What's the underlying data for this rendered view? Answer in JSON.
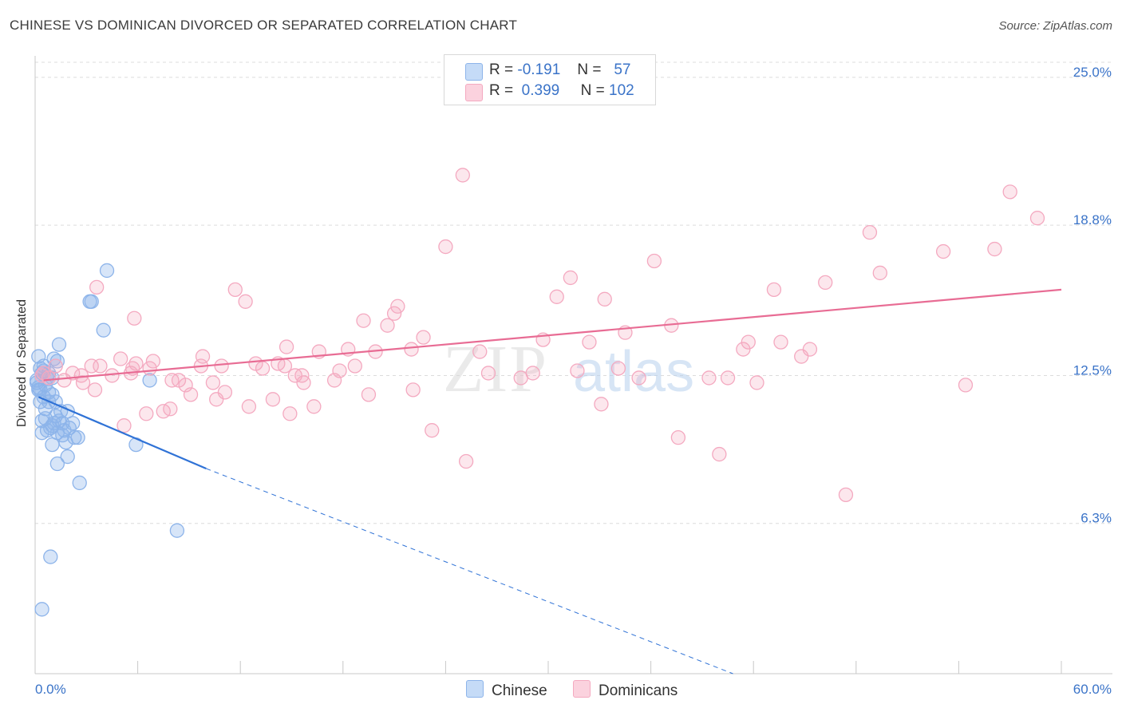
{
  "chart_data": {
    "type": "scatter",
    "title": "CHINESE VS DOMINICAN DIVORCED OR SEPARATED CORRELATION CHART",
    "source": "Source: ZipAtlas.com",
    "xlabel": "",
    "ylabel": "Divorced or Separated",
    "xlim": [
      0,
      60
    ],
    "ylim": [
      0,
      25.9
    ],
    "x_tick_labels": [
      "0.0%",
      "60.0%"
    ],
    "y_ticks": [
      6.3,
      12.5,
      18.8,
      25.0
    ],
    "y_tick_labels": [
      "6.3%",
      "12.5%",
      "18.8%",
      "25.0%"
    ],
    "grid": true,
    "watermark": "ZIPatlas",
    "legend_stats": [
      {
        "r_label": "R =",
        "r": "-0.191",
        "n_label": "N =",
        "n": "57",
        "color": "#8db4ea"
      },
      {
        "r_label": "R =",
        "r": "0.399",
        "n_label": "N =",
        "n": "102",
        "color": "#f4a9c0"
      }
    ],
    "series": [
      {
        "name": "Chinese",
        "color": "#8db4ea",
        "line_color": "#2f72d6",
        "trend": {
          "x0": 0.2,
          "y0": 11.6,
          "x1": 10.0,
          "y1": 8.6,
          "dash_to_x": 40.8,
          "dash_to_y": 0.0
        },
        "x": [
          0.1,
          0.2,
          0.2,
          0.3,
          0.4,
          0.5,
          0.6,
          0.7,
          0.8,
          1.0,
          1.1,
          1.3,
          1.4,
          0.3,
          0.5,
          0.6,
          0.8,
          1.0,
          1.2,
          1.5,
          1.6,
          1.9,
          2.2,
          0.4,
          0.9,
          1.1,
          1.4,
          1.7,
          2.0,
          2.3,
          0.6,
          0.7,
          1.0,
          1.3,
          1.6,
          0.2,
          0.3,
          0.5,
          0.8,
          1.2,
          0.4,
          1.0,
          1.8,
          2.5,
          1.9,
          3.2,
          3.3,
          4.0,
          6.7,
          5.9,
          1.3,
          2.6,
          4.2,
          8.3,
          0.1,
          0.9,
          0.4
        ],
        "y": [
          12.2,
          12.0,
          11.9,
          12.8,
          12.6,
          12.9,
          12.1,
          12.4,
          11.8,
          12.4,
          13.2,
          13.1,
          13.8,
          11.4,
          11.6,
          11.1,
          11.4,
          11.7,
          11.4,
          11.0,
          10.5,
          11.0,
          10.5,
          10.6,
          10.3,
          10.5,
          10.6,
          10.2,
          10.3,
          9.9,
          10.7,
          10.2,
          10.4,
          10.1,
          10.0,
          13.3,
          11.9,
          12.7,
          12.6,
          10.8,
          10.1,
          9.6,
          9.7,
          9.9,
          9.1,
          15.6,
          15.6,
          14.4,
          12.3,
          9.6,
          8.8,
          8.0,
          16.9,
          6.0,
          12.3,
          4.9,
          2.7
        ],
        "x_override": null
      },
      {
        "name": "Dominicans",
        "color": "#f4a9c0",
        "line_color": "#e86c94",
        "trend": {
          "x0": 0.5,
          "y0": 12.3,
          "x1": 60.0,
          "y1": 16.1
        },
        "x": [
          0.4,
          0.5,
          0.8,
          1.2,
          1.7,
          2.7,
          2.8,
          3.3,
          3.5,
          3.8,
          4.5,
          5.0,
          5.2,
          5.6,
          5.7,
          5.9,
          6.5,
          6.7,
          6.9,
          7.5,
          7.9,
          8.0,
          8.4,
          8.8,
          9.1,
          9.7,
          9.8,
          10.4,
          10.6,
          10.9,
          11.1,
          11.7,
          12.3,
          12.5,
          12.9,
          13.3,
          13.9,
          14.2,
          14.6,
          14.7,
          14.9,
          15.2,
          15.6,
          15.7,
          16.3,
          16.6,
          17.5,
          17.8,
          18.3,
          18.7,
          19.2,
          19.5,
          19.9,
          20.6,
          21.0,
          21.2,
          22.0,
          22.1,
          22.7,
          23.2,
          24.0,
          25.2,
          26.0,
          26.5,
          28.4,
          29.1,
          29.7,
          30.5,
          31.3,
          31.7,
          32.4,
          33.1,
          33.3,
          34.1,
          34.5,
          35.3,
          36.2,
          37.2,
          37.6,
          39.4,
          40.0,
          40.5,
          41.4,
          41.7,
          42.2,
          43.2,
          43.6,
          44.8,
          45.3,
          46.2,
          47.4,
          48.8,
          49.4,
          53.1,
          54.4,
          56.1,
          57.0,
          58.6,
          2.2,
          3.6,
          5.8,
          25.0
        ],
        "y": [
          12.5,
          12.6,
          12.4,
          12.9,
          12.3,
          12.5,
          12.2,
          12.9,
          11.9,
          12.9,
          12.5,
          13.2,
          10.4,
          12.6,
          12.8,
          13.0,
          10.9,
          12.8,
          13.1,
          11.0,
          11.1,
          12.3,
          12.3,
          12.1,
          11.7,
          12.9,
          13.3,
          12.2,
          11.5,
          12.9,
          11.8,
          16.1,
          15.6,
          11.2,
          13.0,
          12.8,
          11.5,
          13.0,
          12.9,
          13.7,
          10.9,
          12.5,
          12.5,
          12.2,
          11.2,
          13.5,
          12.3,
          12.7,
          13.6,
          12.9,
          14.8,
          11.7,
          13.5,
          14.6,
          15.1,
          15.4,
          13.6,
          11.9,
          14.1,
          10.2,
          17.9,
          8.9,
          13.5,
          12.6,
          12.4,
          12.6,
          14.0,
          15.8,
          16.6,
          12.7,
          13.9,
          11.3,
          15.7,
          12.8,
          14.3,
          12.4,
          17.3,
          14.6,
          9.9,
          12.4,
          9.2,
          12.4,
          13.6,
          13.9,
          12.2,
          16.1,
          13.9,
          13.3,
          13.6,
          16.4,
          7.5,
          18.5,
          16.8,
          17.7,
          12.1,
          17.8,
          20.2,
          19.1,
          12.6,
          16.2,
          14.9,
          20.9
        ],
        "x_override": null
      }
    ]
  }
}
